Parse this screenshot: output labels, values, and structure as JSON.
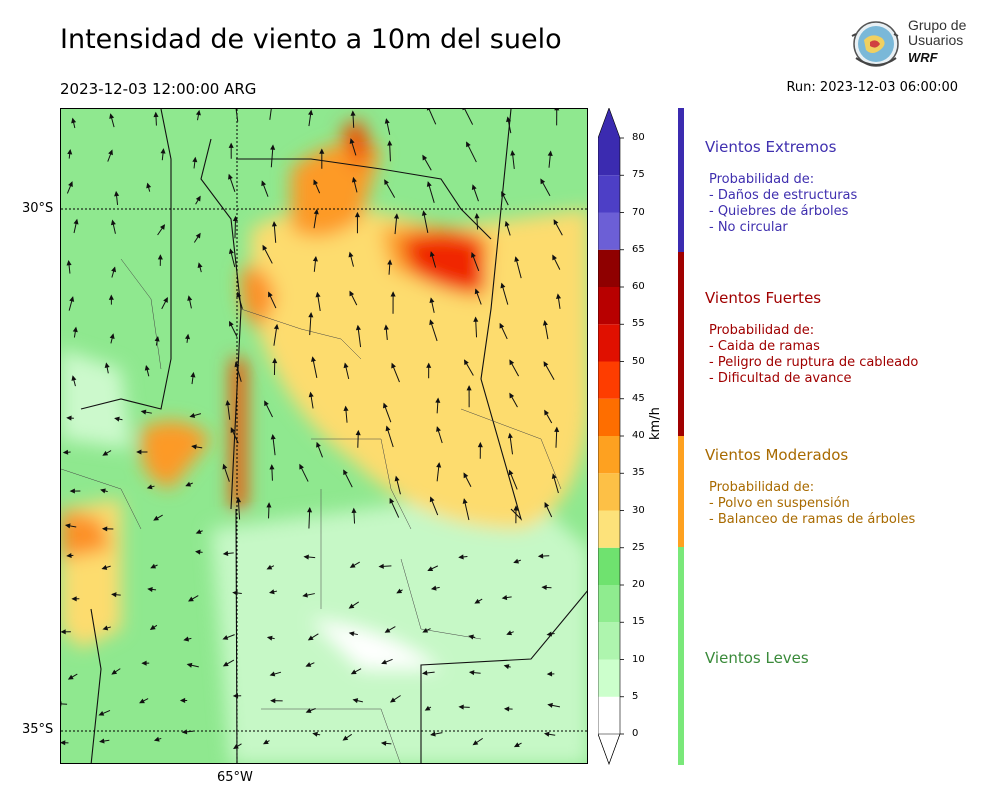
{
  "title": "Intensidad de viento a 10m del suelo",
  "valid_time": "2023-12-03 12:00:00 ARG",
  "run": "Run: 2023-12-03 06:00:00",
  "logo": {
    "line1": "Grupo de",
    "line2": "Usuarios",
    "line3": "WRF"
  },
  "map": {
    "lat_labels": [
      "30°S",
      "35°S"
    ],
    "lon_labels": [
      "65°W"
    ]
  },
  "colorbar": {
    "unit": "km/h",
    "ticks": [
      "0",
      "5",
      "10",
      "15",
      "20",
      "25",
      "30",
      "35",
      "40",
      "45",
      "50",
      "55",
      "60",
      "65",
      "70",
      "75",
      "80"
    ],
    "colors": [
      "#ffffff",
      "#ccffcc",
      "#aef5ae",
      "#8fec8f",
      "#6fe26f",
      "#fde27a",
      "#fdc046",
      "#fea120",
      "#fe6e00",
      "#fe3d00",
      "#e01000",
      "#b80000",
      "#8f0000",
      "#6c5fd6",
      "#4d3fc6",
      "#3b2bb0"
    ]
  },
  "categories": [
    {
      "title": "Vientos Extremos",
      "color": "#3f2faf",
      "lines": [
        "Probabilidad de:",
        "- Daños de estructuras",
        "- Quiebres de árboles",
        "- No circular"
      ]
    },
    {
      "title": "Vientos Fuertes",
      "color": "#a00000",
      "lines": [
        "Probabilidad de:",
        "- Caida de ramas",
        "- Peligro de ruptura de cableado",
        "- Dificultad de avance"
      ]
    },
    {
      "title": "Vientos Moderados",
      "color": "#a86a00",
      "lines": [
        "Probabilidad de:",
        "- Polvo en suspensión",
        "- Balanceo de ramas de árboles"
      ]
    },
    {
      "title": "Vientos Leves",
      "color": "#3a8a3a",
      "lines": []
    }
  ]
}
